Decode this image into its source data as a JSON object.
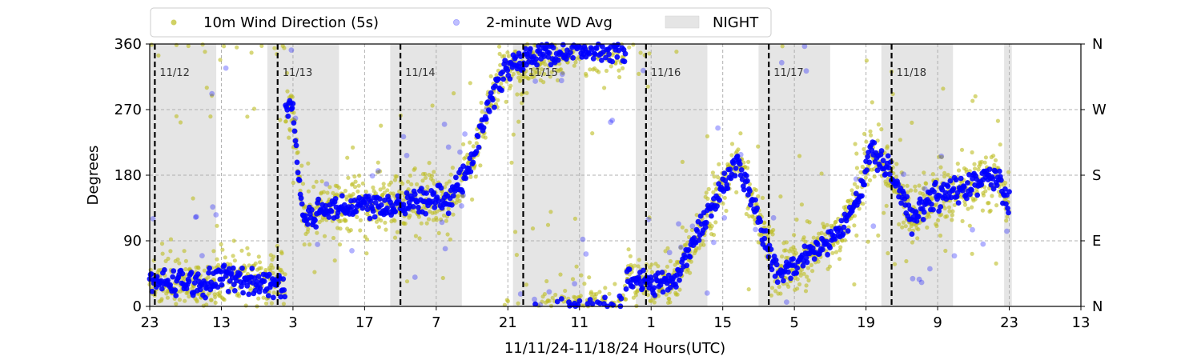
{
  "chart_data": {
    "type": "scatter",
    "xlabel": "11/11/24-11/18/24  Hours(UTC)",
    "ylabel": "Degrees",
    "x_start": "2024-11-11T23:00Z",
    "x_end": "2024-11-19T13:00Z",
    "ylim": [
      0,
      360
    ],
    "x_tick_labels": [
      "23",
      "13",
      "3",
      "17",
      "7",
      "21",
      "11",
      "1",
      "15",
      "5",
      "19",
      "9",
      "23",
      "13"
    ],
    "y_tick_labels": [
      "0",
      "90",
      "180",
      "270",
      "360"
    ],
    "y2_tick_labels": [
      "N",
      "E",
      "S",
      "W",
      "N"
    ],
    "grid": true,
    "legend_position": "top",
    "legend": [
      {
        "label": "10m Wind Direction (5s)",
        "color": "#bcbd22"
      },
      {
        "label": "2-minute WD Avg",
        "color": "#0000ff"
      },
      {
        "label": "NIGHT",
        "color": "#e5e5e5"
      }
    ],
    "day_markers": [
      {
        "time": "2024-11-12T00:00Z",
        "label": "11/12"
      },
      {
        "time": "2024-11-13T00:00Z",
        "label": "11/13"
      },
      {
        "time": "2024-11-14T00:00Z",
        "label": "11/14"
      },
      {
        "time": "2024-11-15T00:00Z",
        "label": "11/15"
      },
      {
        "time": "2024-11-16T00:00Z",
        "label": "11/16"
      },
      {
        "time": "2024-11-17T00:00Z",
        "label": "11/17"
      },
      {
        "time": "2024-11-18T00:00Z",
        "label": "11/18"
      }
    ],
    "night_periods": [
      {
        "start": "2024-11-11T23:00Z",
        "end": "2024-11-12T12:00Z"
      },
      {
        "start": "2024-11-12T22:00Z",
        "end": "2024-11-13T12:00Z"
      },
      {
        "start": "2024-11-13T22:00Z",
        "end": "2024-11-14T12:00Z"
      },
      {
        "start": "2024-11-14T22:00Z",
        "end": "2024-11-15T12:00Z"
      },
      {
        "start": "2024-11-15T22:00Z",
        "end": "2024-11-16T12:00Z"
      },
      {
        "start": "2024-11-16T22:00Z",
        "end": "2024-11-17T12:00Z"
      },
      {
        "start": "2024-11-17T22:00Z",
        "end": "2024-11-18T12:00Z"
      },
      {
        "start": "2024-11-18T22:00Z",
        "end": "2024-11-18T23:30Z"
      }
    ],
    "series": [
      {
        "name": "2-minute WD Avg",
        "color": "#0000ff",
        "points": [
          [
            "2024-11-11T23:00Z",
            30
          ],
          [
            "2024-11-12T04:00Z",
            35
          ],
          [
            "2024-11-12T09:00Z",
            30
          ],
          [
            "2024-11-12T14:00Z",
            40
          ],
          [
            "2024-11-12T19:00Z",
            35
          ],
          [
            "2024-11-13T00:00Z",
            30
          ],
          [
            "2024-11-13T03:00Z",
            270
          ],
          [
            "2024-11-13T05:00Z",
            120
          ],
          [
            "2024-11-13T10:00Z",
            135
          ],
          [
            "2024-11-13T16:00Z",
            140
          ],
          [
            "2024-11-13T22:00Z",
            140
          ],
          [
            "2024-11-14T04:00Z",
            145
          ],
          [
            "2024-11-14T10:00Z",
            150
          ],
          [
            "2024-11-14T14:00Z",
            200
          ],
          [
            "2024-11-14T17:00Z",
            270
          ],
          [
            "2024-11-14T20:00Z",
            320
          ],
          [
            "2024-11-15T00:00Z",
            340
          ],
          [
            "2024-11-15T06:00Z",
            350
          ],
          [
            "2024-11-15T12:00Z",
            355
          ],
          [
            "2024-11-15T18:00Z",
            355
          ],
          [
            "2024-11-15T22:00Z",
            40
          ],
          [
            "2024-11-16T02:00Z",
            30
          ],
          [
            "2024-11-16T06:00Z",
            40
          ],
          [
            "2024-11-16T10:00Z",
            100
          ],
          [
            "2024-11-16T14:00Z",
            150
          ],
          [
            "2024-11-16T18:00Z",
            200
          ],
          [
            "2024-11-17T02:00Z",
            40
          ],
          [
            "2024-11-17T08:00Z",
            70
          ],
          [
            "2024-11-17T14:00Z",
            100
          ],
          [
            "2024-11-17T18:00Z",
            160
          ],
          [
            "2024-11-17T20:00Z",
            220
          ],
          [
            "2024-11-18T00:00Z",
            180
          ],
          [
            "2024-11-18T04:00Z",
            120
          ],
          [
            "2024-11-18T08:00Z",
            150
          ],
          [
            "2024-11-18T14:00Z",
            160
          ],
          [
            "2024-11-18T20:00Z",
            180
          ],
          [
            "2024-11-18T23:00Z",
            140
          ]
        ]
      }
    ]
  }
}
